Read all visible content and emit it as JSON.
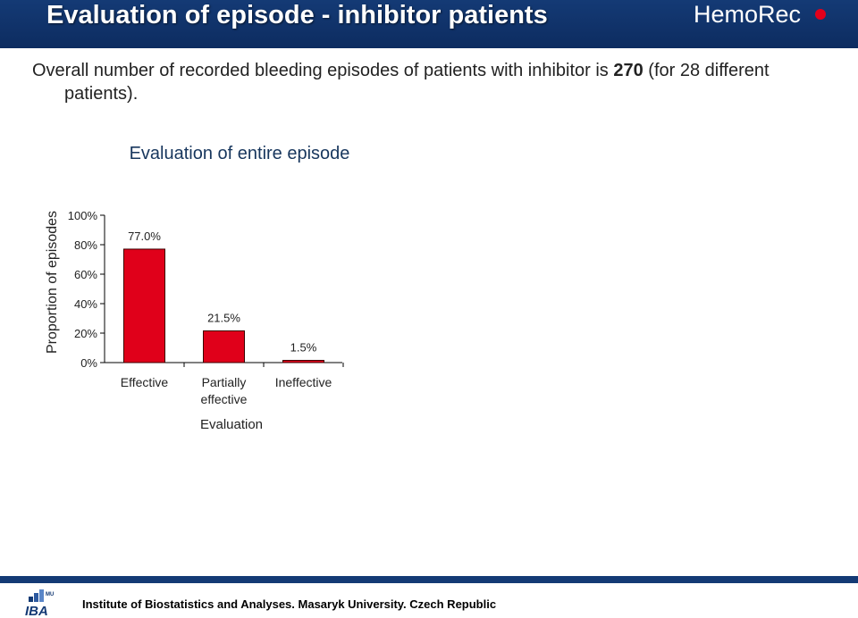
{
  "header": {
    "title": "Evaluation of episode - inhibitor patients",
    "logo_text": "HemoRec",
    "logo_dot_color": "#e3001b"
  },
  "intro": {
    "line1_pre": "Overall number of recorded bleeding episodes of patients with inhibitor is ",
    "count": "270",
    "line1_post": " (for 28 different",
    "line2": "patients)."
  },
  "chart_data": {
    "type": "bar",
    "title": "Evaluation of entire episode",
    "xlabel": "Evaluation",
    "ylabel": "Proportion of episodes",
    "categories": [
      "Effective",
      "Partially effective",
      "Ineffective"
    ],
    "values": [
      77.0,
      21.5,
      1.5
    ],
    "value_labels": [
      "77.0%",
      "21.5%",
      "1.5%"
    ],
    "ylim": [
      0,
      100
    ],
    "yticks": [
      "0%",
      "20%",
      "40%",
      "60%",
      "80%",
      "100%"
    ],
    "grid": false,
    "bar_color": "#e0001a"
  },
  "footer": {
    "logo_text": "IBA",
    "logo_small": "MU",
    "text": "Institute of Biostatistics and Analyses. Masaryk University. Czech Republic"
  }
}
